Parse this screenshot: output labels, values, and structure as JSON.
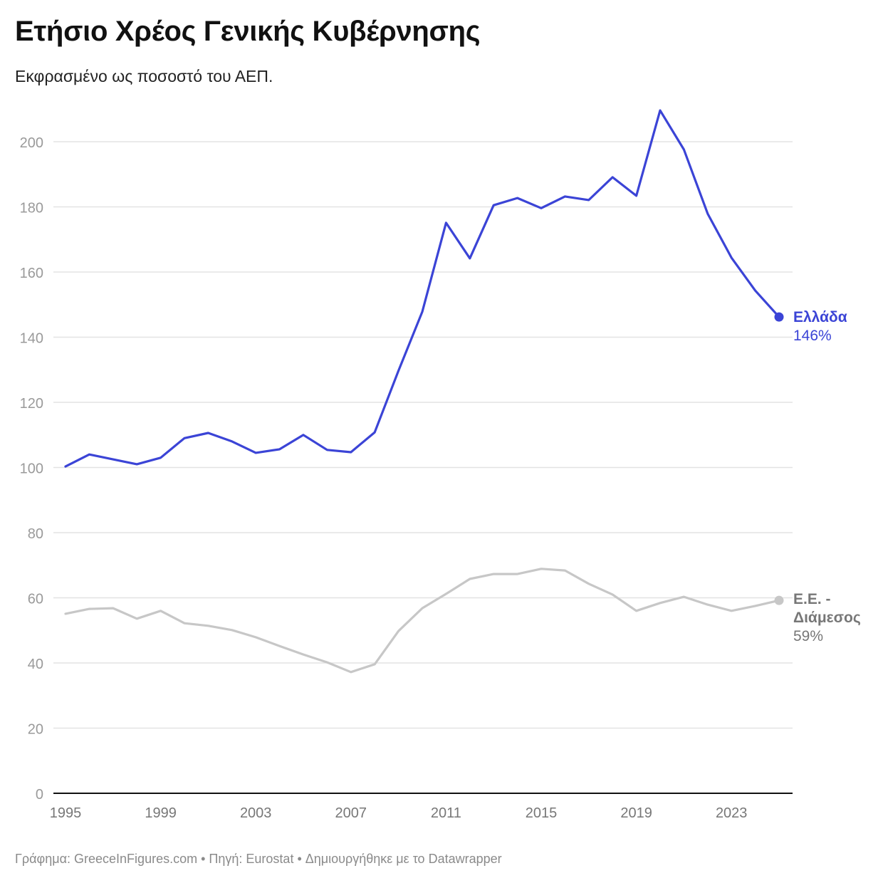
{
  "title": "Ετήσιο Χρέος Γενικής Κυβέρνησης",
  "subtitle": "Εκφρασμένο ως ποσοστό του ΑΕΠ.",
  "footer": "Γράφημα: GreeceInFigures.com • Πηγή: Eurostat • Δημιουργήθηκε με το Datawrapper",
  "colors": {
    "greece": "#3b44d6",
    "eu": "#c7c7c7",
    "eu_label": "#777777",
    "grid": "#e3e3e3",
    "axis": "#111111",
    "tick": "#9a9a9a"
  },
  "labels": {
    "greece": {
      "name": "Ελλάδα",
      "value": "146%"
    },
    "eu": {
      "name_line1": "Ε.Ε. -",
      "name_line2": "Διάμεσος",
      "value": "59%"
    }
  },
  "chart_data": {
    "type": "line",
    "title": "Ετήσιο Χρέος Γενικής Κυβέρνησης",
    "subtitle": "Εκφρασμένο ως ποσοστό του ΑΕΠ.",
    "xlabel": "",
    "ylabel": "",
    "ylim": [
      0,
      210
    ],
    "yticks": [
      0,
      20,
      40,
      60,
      80,
      100,
      120,
      140,
      160,
      180,
      200
    ],
    "xticks": [
      1995,
      1999,
      2003,
      2007,
      2011,
      2015,
      2019,
      2023
    ],
    "grid": true,
    "legend": "direct labels at line ends (right)",
    "x": [
      1995,
      1996,
      1997,
      1998,
      1999,
      2000,
      2001,
      2002,
      2003,
      2004,
      2005,
      2006,
      2007,
      2008,
      2009,
      2010,
      2011,
      2012,
      2013,
      2014,
      2015,
      2016,
      2017,
      2018,
      2019,
      2020,
      2021,
      2022,
      2023,
      2024,
      2025
    ],
    "series": [
      {
        "name": "Ελλάδα",
        "end_label": "146%",
        "values": [
          100.3,
          104.0,
          102.5,
          101.0,
          103.0,
          109.0,
          110.6,
          108.0,
          104.5,
          105.6,
          110.0,
          105.4,
          104.7,
          110.8,
          129.7,
          147.8,
          175.1,
          164.2,
          180.5,
          182.7,
          179.6,
          183.2,
          182.1,
          189.1,
          183.4,
          209.6,
          197.6,
          177.9,
          164.4,
          154.3,
          146.2
        ]
      },
      {
        "name": "Ε.Ε. - Διάμεσος",
        "end_label": "59%",
        "values": [
          55.1,
          56.6,
          56.8,
          53.6,
          56.0,
          52.2,
          51.4,
          50.1,
          47.9,
          45.2,
          42.6,
          40.2,
          37.2,
          39.6,
          49.8,
          56.8,
          61.2,
          65.8,
          67.3,
          67.3,
          68.9,
          68.4,
          64.3,
          61.0,
          56.0,
          58.4,
          60.3,
          57.9,
          56.0,
          57.5,
          59.2
        ]
      }
    ]
  }
}
